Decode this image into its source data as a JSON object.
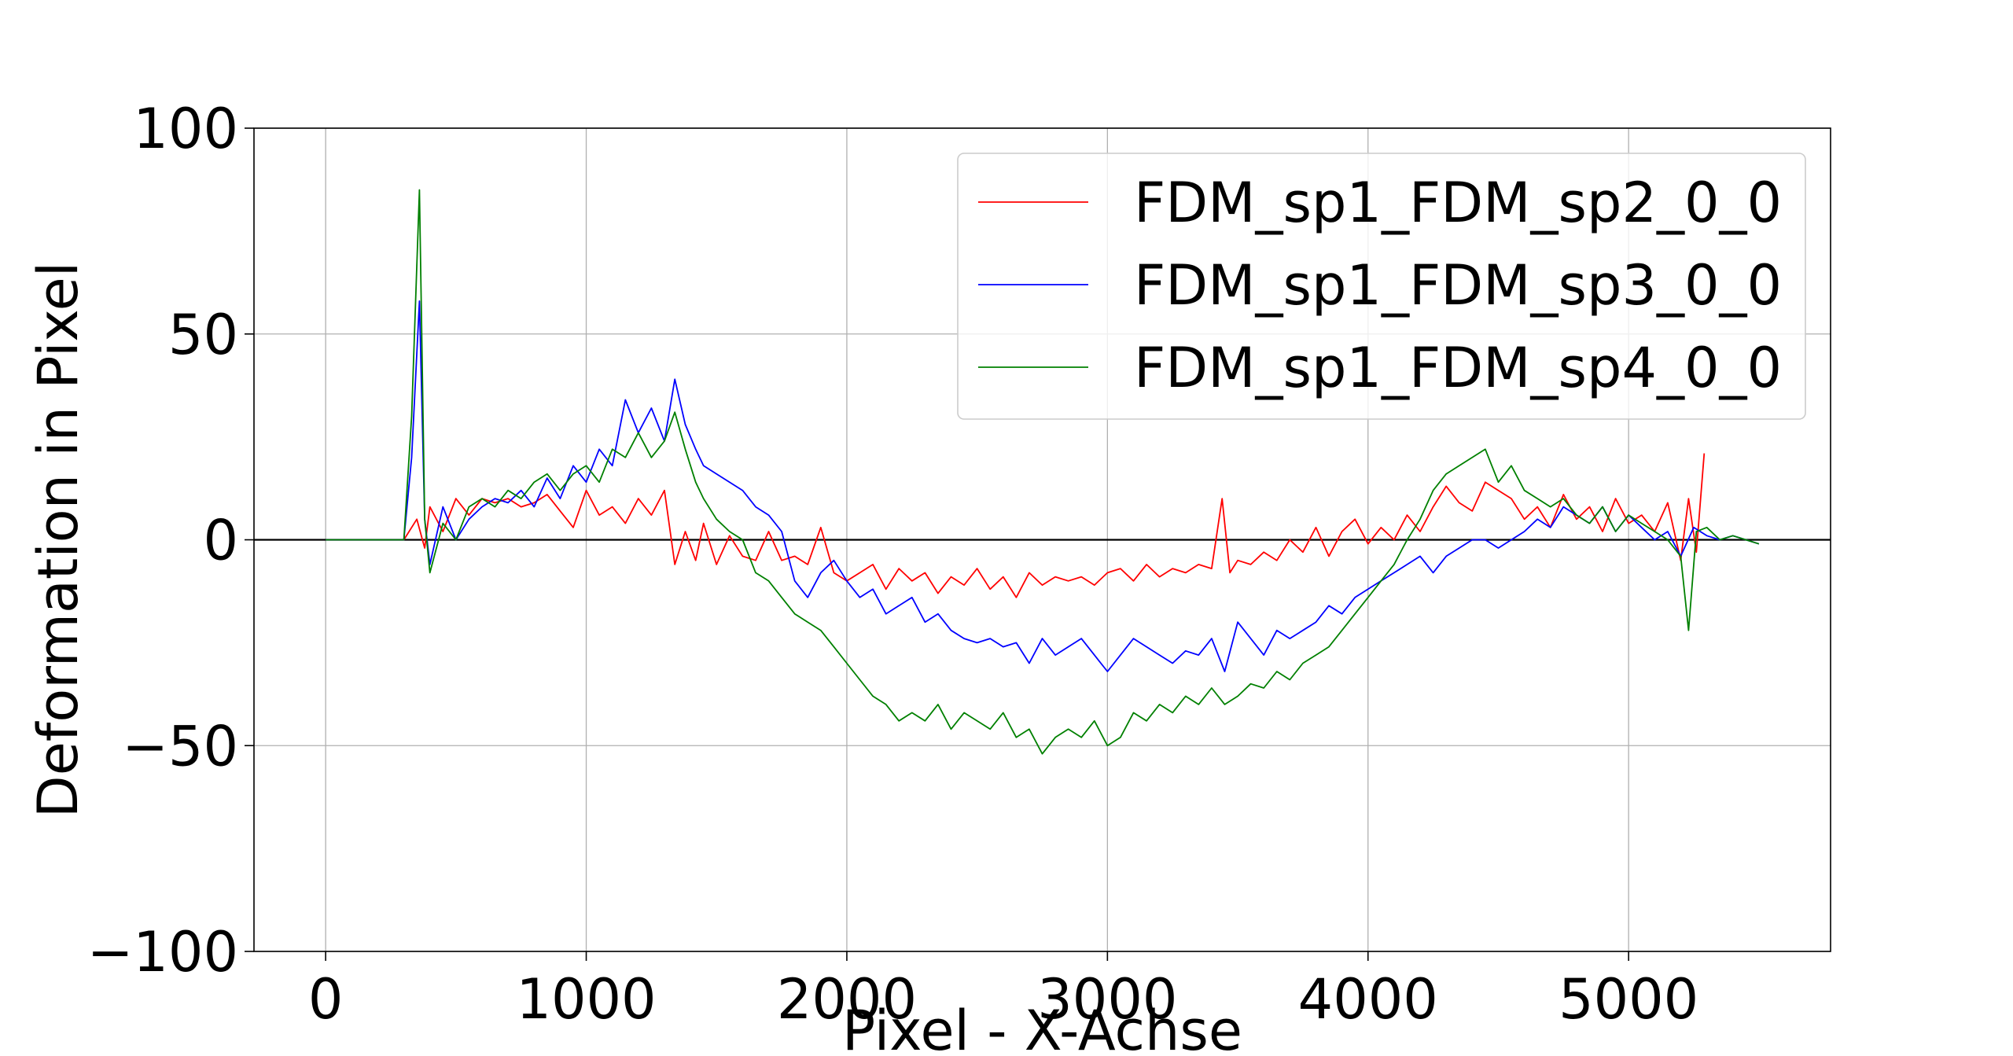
{
  "chart_data": {
    "type": "line",
    "title": "",
    "xlabel": "Pixel - X-Achse",
    "ylabel": "Deformation in Pixel",
    "xlim": [
      -275,
      5775
    ],
    "ylim": [
      -100,
      100
    ],
    "xticks": [
      0,
      1000,
      2000,
      3000,
      4000,
      5000
    ],
    "yticks": [
      -100,
      -50,
      0,
      50,
      100
    ],
    "xtick_labels": [
      "0",
      "1000",
      "2000",
      "3000",
      "4000",
      "5000"
    ],
    "ytick_labels": [
      "−100",
      "−50",
      "0",
      "50",
      "100"
    ],
    "grid": true,
    "zero_line": true,
    "legend_position": "top-right",
    "series": [
      {
        "name": "FDM_sp1_FDM_sp2_0_0",
        "color": "#ff0000",
        "x": [
          0,
          100,
          200,
          300,
          350,
          380,
          400,
          450,
          500,
          550,
          600,
          650,
          700,
          750,
          800,
          850,
          900,
          950,
          1000,
          1050,
          1100,
          1150,
          1200,
          1250,
          1300,
          1340,
          1380,
          1420,
          1450,
          1500,
          1550,
          1600,
          1650,
          1700,
          1750,
          1800,
          1850,
          1900,
          1950,
          2000,
          2050,
          2100,
          2150,
          2200,
          2250,
          2300,
          2350,
          2400,
          2450,
          2500,
          2550,
          2600,
          2650,
          2700,
          2750,
          2800,
          2850,
          2900,
          2950,
          3000,
          3050,
          3100,
          3150,
          3200,
          3250,
          3300,
          3350,
          3400,
          3440,
          3470,
          3500,
          3550,
          3600,
          3650,
          3700,
          3750,
          3800,
          3850,
          3900,
          3950,
          4000,
          4050,
          4100,
          4150,
          4200,
          4250,
          4300,
          4350,
          4400,
          4450,
          4500,
          4550,
          4600,
          4650,
          4700,
          4750,
          4800,
          4850,
          4900,
          4950,
          5000,
          5050,
          5100,
          5150,
          5200,
          5230,
          5260,
          5290
        ],
        "y": [
          0,
          0,
          0,
          0,
          5,
          -2,
          8,
          2,
          10,
          6,
          10,
          9,
          10,
          8,
          9,
          11,
          7,
          3,
          12,
          6,
          8,
          4,
          10,
          6,
          12,
          -6,
          2,
          -5,
          4,
          -6,
          1,
          -4,
          -5,
          2,
          -5,
          -4,
          -6,
          3,
          -8,
          -10,
          -8,
          -6,
          -12,
          -7,
          -10,
          -8,
          -13,
          -9,
          -11,
          -7,
          -12,
          -9,
          -14,
          -8,
          -11,
          -9,
          -10,
          -9,
          -11,
          -8,
          -7,
          -10,
          -6,
          -9,
          -7,
          -8,
          -6,
          -7,
          10,
          -8,
          -5,
          -6,
          -3,
          -5,
          0,
          -3,
          3,
          -4,
          2,
          5,
          -1,
          3,
          0,
          6,
          2,
          8,
          13,
          9,
          7,
          14,
          12,
          10,
          5,
          8,
          3,
          11,
          5,
          8,
          2,
          10,
          4,
          6,
          2,
          9,
          -5,
          10,
          -3,
          21
        ]
      },
      {
        "name": "FDM_sp1_FDM_sp3_0_0",
        "color": "#0000ff",
        "x": [
          0,
          100,
          200,
          300,
          330,
          360,
          380,
          400,
          450,
          500,
          550,
          600,
          650,
          700,
          750,
          800,
          850,
          900,
          950,
          1000,
          1050,
          1100,
          1150,
          1200,
          1250,
          1300,
          1340,
          1380,
          1420,
          1450,
          1500,
          1550,
          1600,
          1650,
          1700,
          1750,
          1800,
          1850,
          1900,
          1950,
          2000,
          2050,
          2100,
          2150,
          2200,
          2250,
          2300,
          2350,
          2400,
          2450,
          2500,
          2550,
          2600,
          2650,
          2700,
          2750,
          2800,
          2850,
          2900,
          2950,
          3000,
          3050,
          3100,
          3150,
          3200,
          3250,
          3300,
          3350,
          3400,
          3450,
          3500,
          3550,
          3600,
          3650,
          3700,
          3750,
          3800,
          3850,
          3900,
          3950,
          4000,
          4050,
          4100,
          4150,
          4200,
          4250,
          4300,
          4350,
          4400,
          4450,
          4500,
          4550,
          4600,
          4650,
          4700,
          4750,
          4800,
          4850,
          4900,
          4950,
          5000,
          5050,
          5100,
          5150,
          5200,
          5250,
          5300,
          5350,
          5400,
          5450,
          5500
        ],
        "y": [
          0,
          0,
          0,
          0,
          20,
          58,
          5,
          -6,
          8,
          0,
          5,
          8,
          10,
          9,
          12,
          8,
          15,
          10,
          18,
          14,
          22,
          18,
          34,
          26,
          32,
          24,
          39,
          28,
          22,
          18,
          16,
          14,
          12,
          8,
          6,
          2,
          -10,
          -14,
          -8,
          -5,
          -10,
          -14,
          -12,
          -18,
          -16,
          -14,
          -20,
          -18,
          -22,
          -24,
          -25,
          -24,
          -26,
          -25,
          -30,
          -24,
          -28,
          -26,
          -24,
          -28,
          -32,
          -28,
          -24,
          -26,
          -28,
          -30,
          -27,
          -28,
          -24,
          -32,
          -20,
          -24,
          -28,
          -22,
          -24,
          -22,
          -20,
          -16,
          -18,
          -14,
          -12,
          -10,
          -8,
          -6,
          -4,
          -8,
          -4,
          -2,
          0,
          0,
          -2,
          0,
          2,
          5,
          3,
          8,
          6,
          4,
          8,
          2,
          6,
          3,
          0,
          2,
          -4,
          3,
          1,
          0,
          1,
          0,
          -1
        ]
      },
      {
        "name": "FDM_sp1_FDM_sp4_0_0",
        "color": "#008000",
        "x": [
          0,
          100,
          200,
          300,
          330,
          360,
          380,
          400,
          450,
          500,
          550,
          600,
          650,
          700,
          750,
          800,
          850,
          900,
          950,
          1000,
          1050,
          1100,
          1150,
          1200,
          1250,
          1300,
          1340,
          1380,
          1420,
          1450,
          1500,
          1550,
          1600,
          1650,
          1700,
          1750,
          1800,
          1850,
          1900,
          1950,
          2000,
          2050,
          2100,
          2150,
          2200,
          2250,
          2300,
          2350,
          2400,
          2450,
          2500,
          2550,
          2600,
          2650,
          2700,
          2750,
          2800,
          2850,
          2900,
          2950,
          3000,
          3050,
          3100,
          3150,
          3200,
          3250,
          3300,
          3350,
          3400,
          3450,
          3500,
          3550,
          3600,
          3650,
          3700,
          3750,
          3800,
          3850,
          3900,
          3950,
          4000,
          4050,
          4100,
          4150,
          4200,
          4250,
          4300,
          4350,
          4400,
          4450,
          4500,
          4550,
          4600,
          4650,
          4700,
          4750,
          4800,
          4850,
          4900,
          4950,
          5000,
          5050,
          5100,
          5150,
          5200,
          5230,
          5260,
          5300,
          5350,
          5400,
          5450,
          5500
        ],
        "y": [
          0,
          0,
          0,
          0,
          30,
          85,
          5,
          -8,
          4,
          0,
          8,
          10,
          8,
          12,
          10,
          14,
          16,
          12,
          16,
          18,
          14,
          22,
          20,
          26,
          20,
          24,
          31,
          22,
          14,
          10,
          5,
          2,
          0,
          -8,
          -10,
          -14,
          -18,
          -20,
          -22,
          -26,
          -30,
          -34,
          -38,
          -40,
          -44,
          -42,
          -44,
          -40,
          -46,
          -42,
          -44,
          -46,
          -42,
          -48,
          -46,
          -52,
          -48,
          -46,
          -48,
          -44,
          -50,
          -48,
          -42,
          -44,
          -40,
          -42,
          -38,
          -40,
          -36,
          -40,
          -38,
          -35,
          -36,
          -32,
          -34,
          -30,
          -28,
          -26,
          -22,
          -18,
          -14,
          -10,
          -6,
          0,
          5,
          12,
          16,
          18,
          20,
          22,
          14,
          18,
          12,
          10,
          8,
          10,
          6,
          4,
          8,
          2,
          6,
          4,
          2,
          0,
          -4,
          -22,
          2,
          3,
          0,
          1,
          0,
          -1
        ]
      }
    ]
  }
}
